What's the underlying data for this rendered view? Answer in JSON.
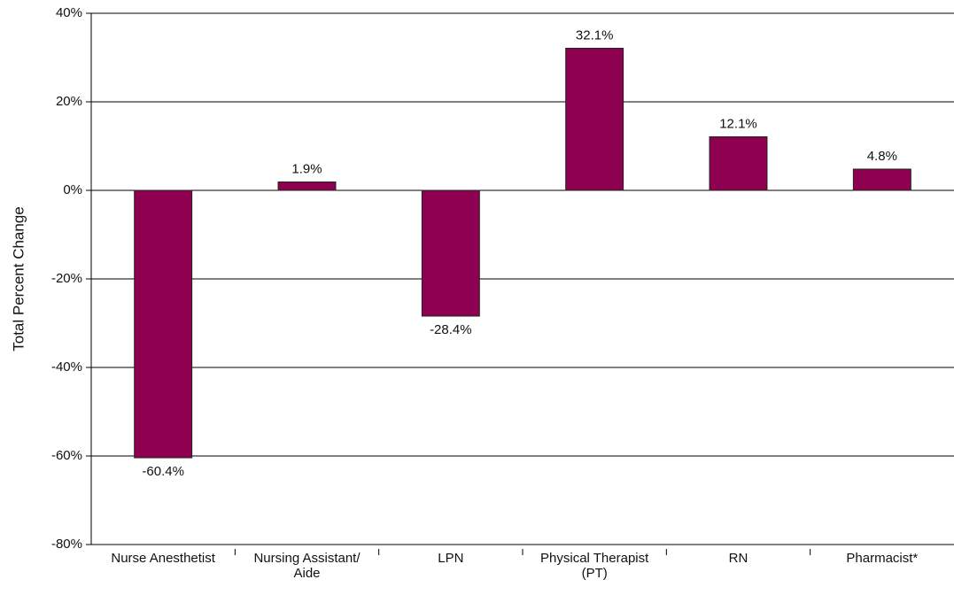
{
  "chart_data": {
    "type": "bar",
    "y_label": "Total Percent Change",
    "categories": [
      "Nurse Anesthetist",
      "Nursing Assistant/\nAide",
      "LPN",
      "Physical Therapist\n(PT)",
      "RN",
      "Pharmacist*"
    ],
    "values": [
      -60.4,
      1.9,
      -28.4,
      32.1,
      12.1,
      4.8
    ],
    "value_labels": [
      "-60.4%",
      "1.9%",
      "-28.4%",
      "32.1%",
      "12.1%",
      "4.8%"
    ],
    "color": "#8e0050",
    "ylim": [
      -80,
      40
    ],
    "yticks": [
      {
        "value": -80,
        "label": "-80%"
      },
      {
        "value": -60,
        "label": "-60%"
      },
      {
        "value": -40,
        "label": "-40%"
      },
      {
        "value": -20,
        "label": "-20%"
      },
      {
        "value": 0,
        "label": "0%"
      },
      {
        "value": 20,
        "label": "20%"
      },
      {
        "value": 40,
        "label": "40%"
      }
    ],
    "grid": true
  }
}
